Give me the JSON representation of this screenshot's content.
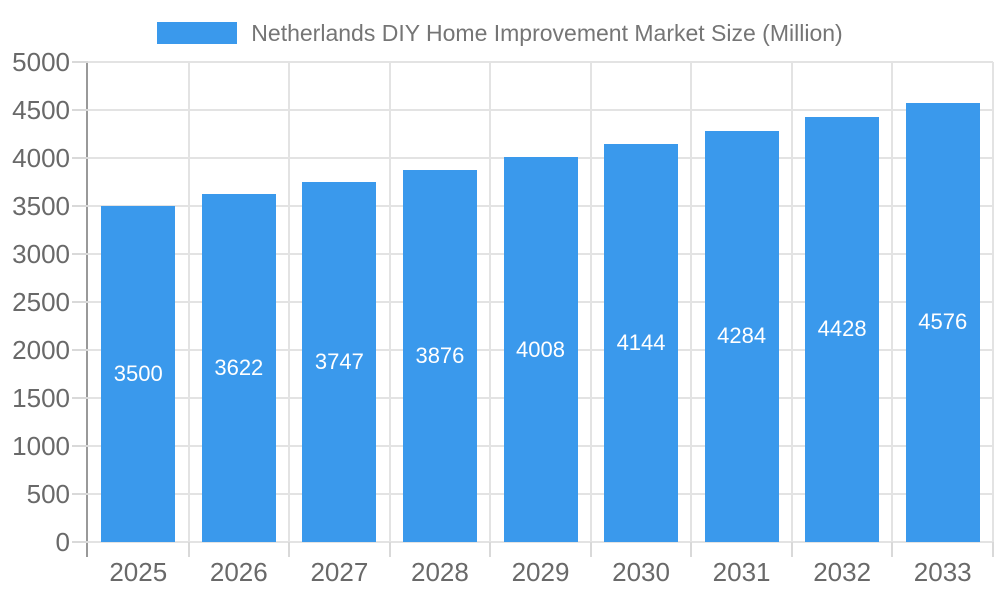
{
  "chart_data": {
    "type": "bar",
    "title": "Netherlands DIY Home Improvement Market Size (Million)",
    "series_name": "Netherlands DIY Home Improvement Market Size (Million)",
    "categories": [
      "2025",
      "2026",
      "2027",
      "2028",
      "2029",
      "2030",
      "2031",
      "2032",
      "2033"
    ],
    "values": [
      3500,
      3622,
      3747,
      3876,
      4008,
      4144,
      4284,
      4428,
      4576
    ],
    "xlabel": "",
    "ylabel": "",
    "ylim": [
      0,
      5000
    ],
    "ytick_step": 500,
    "yticks": [
      0,
      500,
      1000,
      1500,
      2000,
      2500,
      3000,
      3500,
      4000,
      4500,
      5000
    ],
    "grid": true,
    "legend_position": "top-center",
    "value_labels": "inside-center",
    "colors": {
      "bar": "#3A99EC",
      "value_label_text": "#FFFFFF",
      "gridline": "#E3E3E3",
      "axis_line": "#999999",
      "tick": "#D9D9D9",
      "axis_text": "#696969",
      "legend_text": "#757575",
      "background": "#FFFFFF"
    }
  }
}
